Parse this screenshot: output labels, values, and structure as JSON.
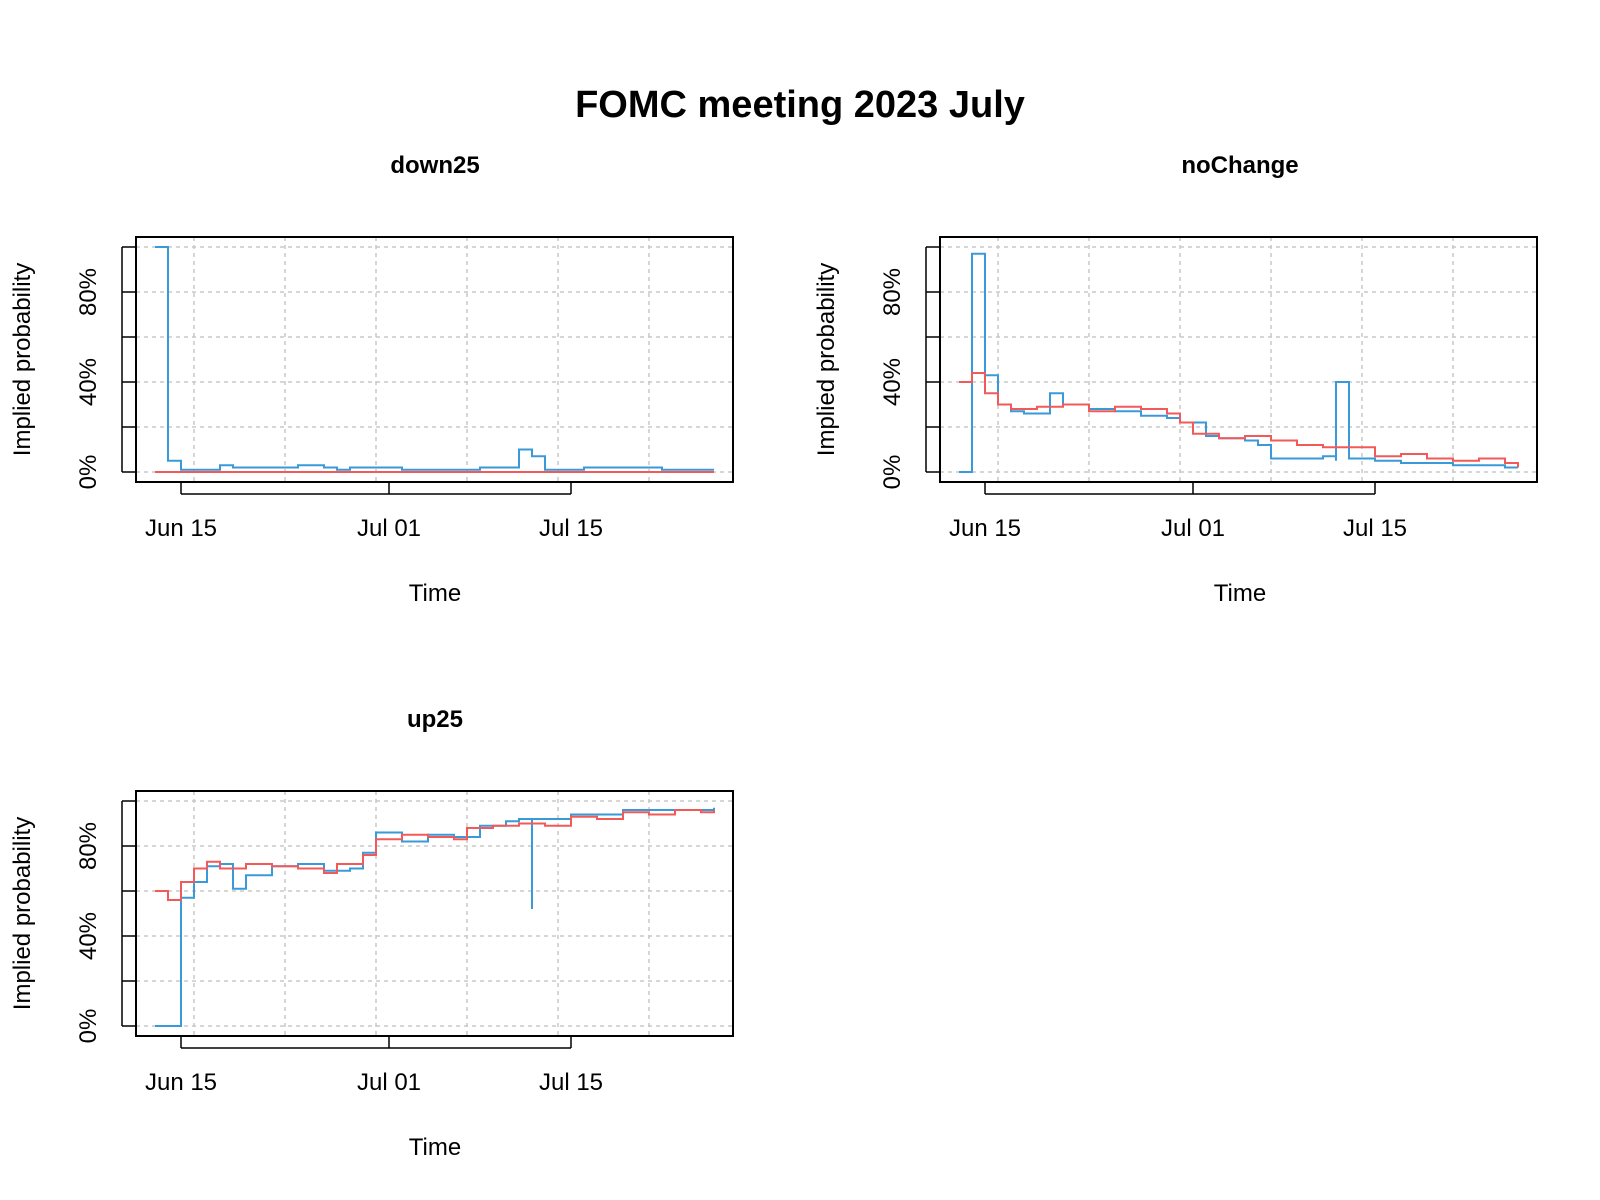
{
  "title": "FOMC meeting 2023 July",
  "colors": {
    "series_1": "#3a9ad9",
    "series_2": "#f25a5a",
    "grid": "#c8c8c8"
  },
  "chart_data": [
    {
      "type": "line",
      "title": "down25",
      "xlabel": "Time",
      "ylabel": "Implied probability",
      "x_ticks": [
        "Jun 15",
        "Jul 01",
        "Jul 15"
      ],
      "x_tick_dates": [
        "2023-06-15",
        "2023-07-01",
        "2023-07-15"
      ],
      "y_ticks": [
        "0%",
        "40%",
        "80%"
      ],
      "ylim": [
        0,
        100
      ],
      "xlim": [
        "2023-06-12",
        "2023-07-27"
      ],
      "grid": true,
      "series": [
        {
          "x": [
            "2023-06-13",
            "2023-06-14",
            "2023-06-14",
            "2023-06-15",
            "2023-06-17",
            "2023-06-18",
            "2023-06-19",
            "2023-06-21",
            "2023-06-24",
            "2023-06-26",
            "2023-06-27",
            "2023-06-28",
            "2023-06-30",
            "2023-07-02",
            "2023-07-05",
            "2023-07-08",
            "2023-07-11",
            "2023-07-11",
            "2023-07-12",
            "2023-07-12",
            "2023-07-13",
            "2023-07-14",
            "2023-07-16",
            "2023-07-18",
            "2023-07-20",
            "2023-07-22",
            "2023-07-24",
            "2023-07-26"
          ],
          "y": [
            100,
            11,
            5,
            1,
            1,
            3,
            2,
            2,
            3,
            2,
            1,
            2,
            2,
            1,
            1,
            2,
            2,
            10,
            7,
            7,
            1,
            1,
            2,
            2,
            2,
            1,
            1,
            1
          ]
        },
        {
          "x": [
            "2023-06-13",
            "2023-06-20",
            "2023-07-01",
            "2023-07-10",
            "2023-07-20",
            "2023-07-26"
          ],
          "y": [
            0,
            0,
            0,
            0,
            0,
            0
          ]
        }
      ]
    },
    {
      "type": "line",
      "title": "noChange",
      "xlabel": "Time",
      "ylabel": "Implied probability",
      "x_ticks": [
        "Jun 15",
        "Jul 01",
        "Jul 15"
      ],
      "x_tick_dates": [
        "2023-06-15",
        "2023-07-01",
        "2023-07-15"
      ],
      "y_ticks": [
        "0%",
        "40%",
        "80%"
      ],
      "ylim": [
        0,
        100
      ],
      "xlim": [
        "2023-06-12",
        "2023-07-27"
      ],
      "grid": true,
      "series": [
        {
          "x": [
            "2023-06-13",
            "2023-06-14",
            "2023-06-14",
            "2023-06-15",
            "2023-06-15",
            "2023-06-16",
            "2023-06-17",
            "2023-06-18",
            "2023-06-20",
            "2023-06-21",
            "2023-06-23",
            "2023-06-25",
            "2023-06-27",
            "2023-06-29",
            "2023-06-30",
            "2023-07-02",
            "2023-07-03",
            "2023-07-05",
            "2023-07-06",
            "2023-07-07",
            "2023-07-09",
            "2023-07-11",
            "2023-07-12",
            "2023-07-12",
            "2023-07-13",
            "2023-07-15",
            "2023-07-17",
            "2023-07-19",
            "2023-07-21",
            "2023-07-23",
            "2023-07-25",
            "2023-07-26"
          ],
          "y": [
            0,
            88,
            97,
            97,
            43,
            30,
            27,
            26,
            35,
            30,
            28,
            27,
            25,
            24,
            22,
            16,
            15,
            14,
            12,
            6,
            6,
            7,
            5,
            40,
            6,
            5,
            4,
            4,
            3,
            3,
            2,
            2
          ]
        },
        {
          "x": [
            "2023-06-13",
            "2023-06-14",
            "2023-06-15",
            "2023-06-16",
            "2023-06-17",
            "2023-06-19",
            "2023-06-21",
            "2023-06-23",
            "2023-06-25",
            "2023-06-27",
            "2023-06-29",
            "2023-06-30",
            "2023-07-01",
            "2023-07-03",
            "2023-07-05",
            "2023-07-07",
            "2023-07-09",
            "2023-07-11",
            "2023-07-13",
            "2023-07-15",
            "2023-07-17",
            "2023-07-19",
            "2023-07-21",
            "2023-07-23",
            "2023-07-25",
            "2023-07-26"
          ],
          "y": [
            40,
            44,
            35,
            30,
            28,
            29,
            30,
            27,
            29,
            28,
            26,
            22,
            17,
            15,
            16,
            14,
            12,
            11,
            11,
            7,
            8,
            6,
            5,
            6,
            4,
            2
          ]
        }
      ]
    },
    {
      "type": "line",
      "title": "up25",
      "xlabel": "Time",
      "ylabel": "Implied probability",
      "x_ticks": [
        "Jun 15",
        "Jul 01",
        "Jul 15"
      ],
      "x_tick_dates": [
        "2023-06-15",
        "2023-07-01",
        "2023-07-15"
      ],
      "y_ticks": [
        "0%",
        "40%",
        "80%"
      ],
      "ylim": [
        0,
        100
      ],
      "xlim": [
        "2023-06-12",
        "2023-07-27"
      ],
      "grid": true,
      "series": [
        {
          "x": [
            "2023-06-13",
            "2023-06-14",
            "2023-06-15",
            "2023-06-15",
            "2023-06-16",
            "2023-06-17",
            "2023-06-18",
            "2023-06-19",
            "2023-06-20",
            "2023-06-22",
            "2023-06-24",
            "2023-06-26",
            "2023-06-28",
            "2023-06-29",
            "2023-06-30",
            "2023-07-02",
            "2023-07-04",
            "2023-07-06",
            "2023-07-08",
            "2023-07-10",
            "2023-07-11",
            "2023-07-12",
            "2023-07-12",
            "2023-07-13",
            "2023-07-15",
            "2023-07-17",
            "2023-07-19",
            "2023-07-21",
            "2023-07-23",
            "2023-07-26"
          ],
          "y": [
            0,
            0,
            0,
            57,
            64,
            71,
            72,
            61,
            67,
            71,
            72,
            69,
            70,
            77,
            86,
            82,
            85,
            84,
            89,
            91,
            92,
            52,
            92,
            92,
            94,
            94,
            96,
            96,
            96,
            97
          ]
        },
        {
          "x": [
            "2023-06-13",
            "2023-06-14",
            "2023-06-15",
            "2023-06-16",
            "2023-06-17",
            "2023-06-18",
            "2023-06-20",
            "2023-06-22",
            "2023-06-24",
            "2023-06-26",
            "2023-06-27",
            "2023-06-29",
            "2023-06-30",
            "2023-07-02",
            "2023-07-04",
            "2023-07-06",
            "2023-07-07",
            "2023-07-09",
            "2023-07-11",
            "2023-07-13",
            "2023-07-15",
            "2023-07-17",
            "2023-07-19",
            "2023-07-21",
            "2023-07-23",
            "2023-07-25",
            "2023-07-26"
          ],
          "y": [
            60,
            56,
            64,
            70,
            73,
            70,
            72,
            71,
            70,
            68,
            72,
            76,
            83,
            85,
            84,
            83,
            88,
            89,
            90,
            89,
            93,
            92,
            95,
            94,
            96,
            95,
            96
          ]
        }
      ]
    }
  ]
}
